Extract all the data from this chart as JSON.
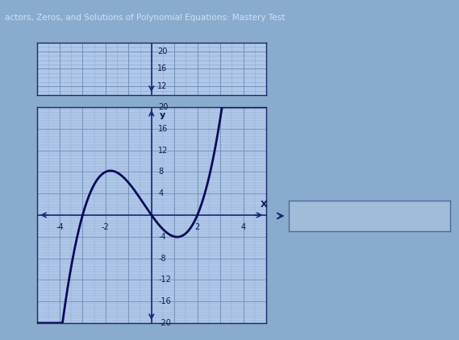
{
  "title": "actors, Zeros, and Solutions of Polynomial Equations: Mastery Test",
  "header_bg": "#3a5a9a",
  "header_text_color": "#d0e0f8",
  "main_bg": "#8aaccc",
  "graph_bg": "#b0c8e8",
  "graph_border": "#1a2a6a",
  "curve_color": "#0a0a5a",
  "axis_color": "#1a2a7a",
  "grid_color": "#7090b8",
  "grid_minor_color": "#8aaad0",
  "tick_color": "#0a1a4a",
  "xmin": -5,
  "xmax": 5,
  "ymin": -20,
  "ymax": 20,
  "xticks": [
    -4,
    -2,
    2,
    4
  ],
  "yticks": [
    -20,
    -16,
    -12,
    -8,
    -4,
    4,
    8,
    12,
    16,
    20
  ],
  "xlabel": "X",
  "ylabel": "y",
  "upper_panel_yticks": [
    12,
    16,
    20
  ],
  "arrow_color": "#1a2a6a",
  "answer_box_border": "#4a6a9a",
  "answer_box_bg": "#a0bcd8"
}
